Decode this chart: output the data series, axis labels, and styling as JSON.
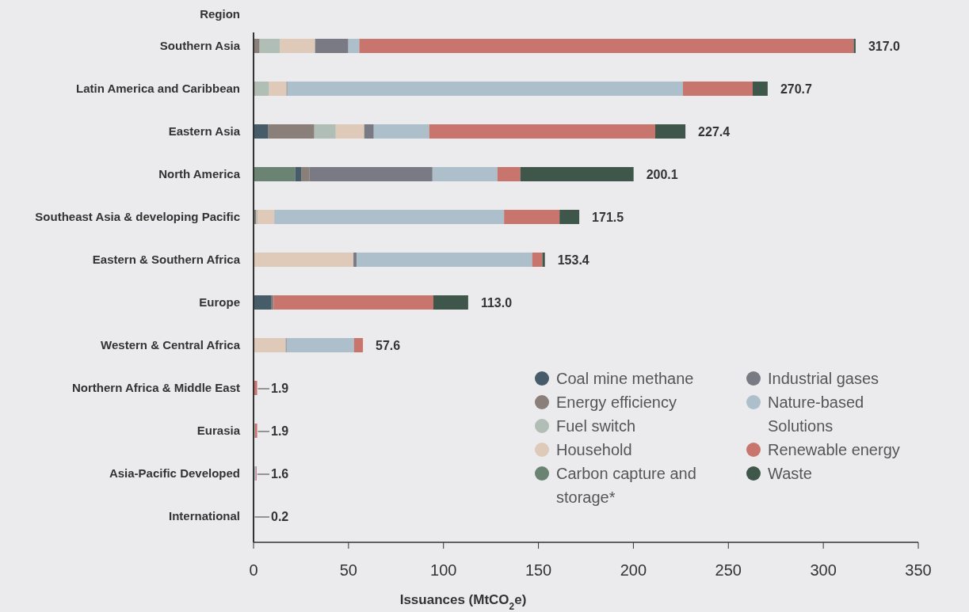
{
  "chart_data": {
    "type": "bar",
    "orientation": "horizontal",
    "stacked": true,
    "ylabel": "Region",
    "xlabel": "Issuances (MtCO$_{2}$e)",
    "categories": [
      "Southern Asia",
      "Latin America and Caribbean",
      "Eastern Asia",
      "North America",
      "Southeast Asia & developing Pacific",
      "Eastern & Southern Africa",
      "Europe",
      "Western & Central Africa",
      "Northern Africa & Middle East",
      "Eurasia",
      "Asia-Pacific Developed",
      "International"
    ],
    "series": [
      {
        "name": "Carbon capture and storage*",
        "color": "#6a8373",
        "values": [
          0,
          0,
          0,
          22.0,
          0,
          0,
          0,
          0,
          0,
          0,
          0,
          0
        ]
      },
      {
        "name": "Coal mine methane",
        "color": "#465c69",
        "values": [
          0,
          0,
          7.8,
          3.3,
          0,
          0,
          9.5,
          0,
          0,
          0,
          0,
          0
        ]
      },
      {
        "name": "Energy efficiency",
        "color": "#8b7f79",
        "values": [
          3.2,
          0.7,
          24.2,
          4.2,
          1.3,
          0,
          1.1,
          0,
          0,
          0,
          0,
          0
        ]
      },
      {
        "name": "Fuel switch",
        "color": "#b0beb5",
        "values": [
          10.8,
          7.5,
          11.3,
          0,
          0.8,
          0,
          0,
          0,
          0,
          0.8,
          0,
          0
        ]
      },
      {
        "name": "Household",
        "color": "#dfc9b9",
        "values": [
          18.4,
          9.2,
          15.0,
          0,
          8.8,
          52.6,
          0,
          17.0,
          0,
          0,
          0,
          0
        ]
      },
      {
        "name": "Industrial gases",
        "color": "#797a83",
        "values": [
          17.5,
          0.4,
          5.0,
          64.7,
          0,
          1.7,
          0,
          0.4,
          0,
          0,
          0,
          0
        ]
      },
      {
        "name": "Nature-based Solutions",
        "color": "#adbfca",
        "values": [
          5.8,
          208.3,
          29.2,
          34.2,
          121.0,
          92.4,
          0,
          35.5,
          0,
          0,
          1.2,
          0
        ]
      },
      {
        "name": "Renewable energy",
        "color": "#c8756d",
        "values": [
          260.3,
          36.7,
          119.0,
          12.1,
          29.2,
          5.4,
          84.1,
          4.7,
          1.9,
          1.1,
          0.4,
          0.2
        ]
      },
      {
        "name": "Waste",
        "color": "#3f574a",
        "values": [
          1.0,
          7.9,
          15.9,
          59.6,
          10.4,
          1.3,
          18.3,
          0,
          0,
          0,
          0,
          0
        ]
      }
    ],
    "totals": [
      "317.0",
      "270.7",
      "227.4",
      "200.1",
      "171.5",
      "153.4",
      "113.0",
      "57.6",
      "1.9",
      "1.9",
      "1.6",
      "0.2"
    ],
    "xlim": [
      0,
      350
    ],
    "xticks": [
      0,
      50,
      100,
      150,
      200,
      250,
      300,
      350
    ],
    "grid": false,
    "legend": "bottom right"
  }
}
